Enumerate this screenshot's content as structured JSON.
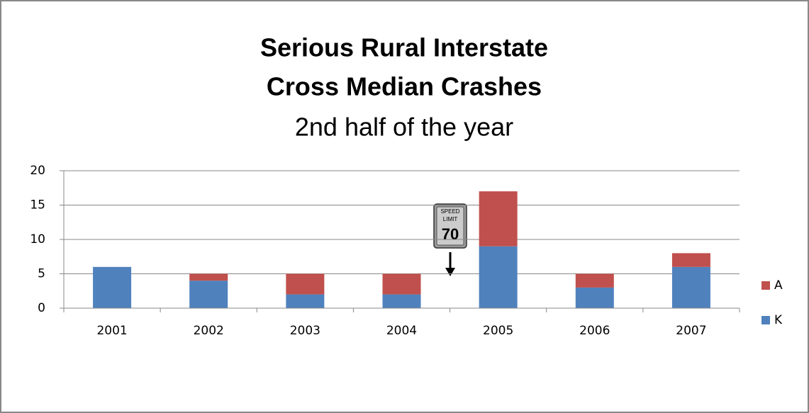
{
  "chart_data": {
    "type": "stacked_bar",
    "title_lines": [
      "Serious Rural Interstate",
      "Cross Median Crashes"
    ],
    "subtitle": "2nd half of the year",
    "categories": [
      "2001",
      "2002",
      "2003",
      "2004",
      "2005",
      "2006",
      "2007"
    ],
    "series": [
      {
        "name": "K",
        "color": "#4f81bd",
        "values": [
          6,
          4,
          2,
          2,
          9,
          3,
          6
        ]
      },
      {
        "name": "A",
        "color": "#c0504d",
        "values": [
          0,
          1,
          3,
          3,
          8,
          2,
          2
        ]
      }
    ],
    "ylim": [
      0,
      20
    ],
    "yticks": [
      0,
      5,
      10,
      15,
      20
    ],
    "grid": true,
    "legend": "right",
    "annotation": {
      "lines": [
        "SPEED",
        "LIMIT",
        "70"
      ]
    }
  }
}
